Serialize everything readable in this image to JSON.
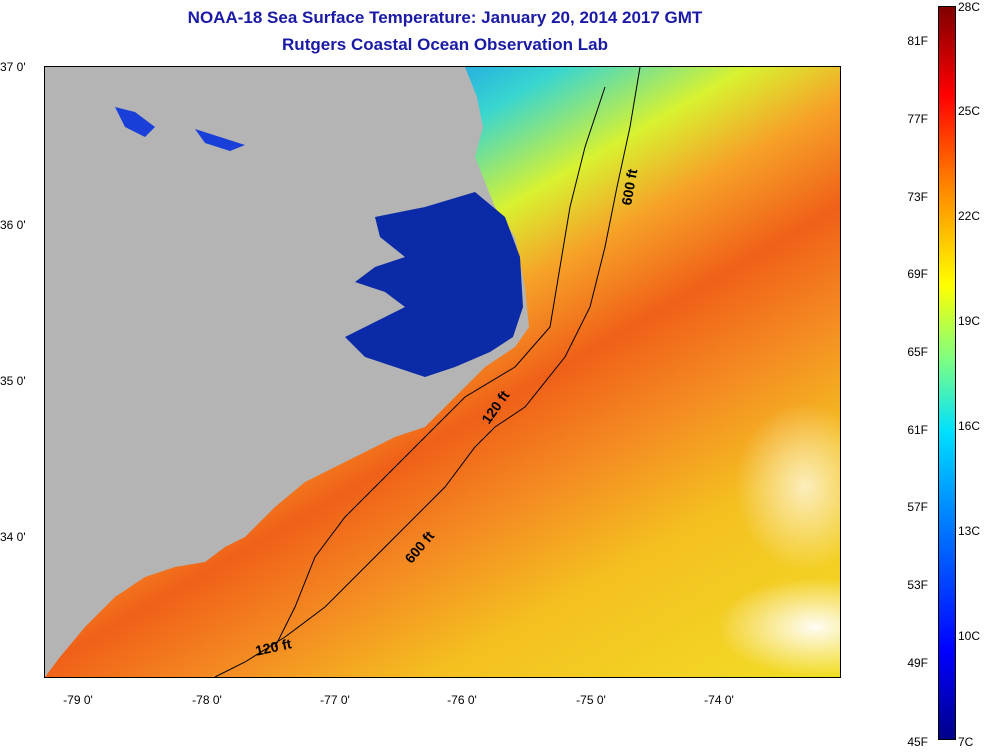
{
  "title": {
    "line1": "NOAA-18 Sea Surface Temperature:  January 20, 2014 2017 GMT",
    "line2": "Rutgers Coastal Ocean Observation Lab"
  },
  "axes": {
    "lat_labels": [
      "37 0'",
      "36 0'",
      "35 0'",
      "34 0'"
    ],
    "lon_labels": [
      "-79 0'",
      "-78 0'",
      "-77 0'",
      "-76 0'",
      "-75 0'",
      "-74 0'"
    ]
  },
  "isobaths": [
    {
      "label": "600 ft"
    },
    {
      "label": "120 ft"
    },
    {
      "label": "600 ft"
    },
    {
      "label": "120 ft"
    }
  ],
  "colorbar": {
    "fahrenheit": [
      "81F",
      "77F",
      "73F",
      "69F",
      "65F",
      "61F",
      "57F",
      "53F",
      "49F",
      "45F"
    ],
    "celsius": [
      "28C",
      "25C",
      "22C",
      "19C",
      "16C",
      "13C",
      "10C",
      "7C"
    ]
  },
  "colors": {
    "title": "#1a1aa6",
    "land": "#b4b4b4",
    "cold": "#10229c",
    "warm": "#f06018"
  }
}
